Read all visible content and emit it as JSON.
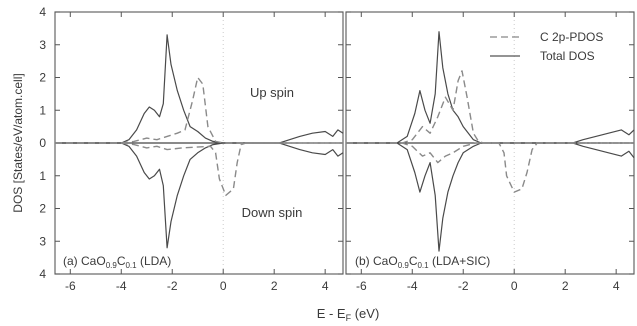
{
  "figure": {
    "xlabel": "E - E",
    "xlabel_sub": "F",
    "xlabel_unit": " (eV)",
    "ylabel": "DOS [States/eV/atom.cell]"
  },
  "chart_data": [
    {
      "type": "line",
      "panel_label": "(a) CaO",
      "panel_label_sub1": "0.9",
      "panel_label_mid": "C",
      "panel_label_sub2": "0.1",
      "panel_label_method": "(LDA)",
      "spin_up_label": "Up spin",
      "spin_down_label": "Down spin",
      "xlim": [
        -6.6,
        4.7
      ],
      "ylim": [
        -4,
        4
      ],
      "xticks": [
        -6,
        -4,
        -2,
        0,
        2,
        4
      ],
      "yticks": [
        4,
        3,
        2,
        1,
        0,
        1,
        2,
        3,
        4
      ],
      "series": [
        {
          "name": "Total DOS",
          "style": "solid",
          "up": [
            [
              -6.6,
              0
            ],
            [
              -4.0,
              0
            ],
            [
              -3.7,
              0.1
            ],
            [
              -3.4,
              0.4
            ],
            [
              -3.1,
              0.9
            ],
            [
              -2.9,
              1.1
            ],
            [
              -2.7,
              1.0
            ],
            [
              -2.5,
              0.8
            ],
            [
              -2.35,
              1.2
            ],
            [
              -2.2,
              3.3
            ],
            [
              -2.05,
              2.4
            ],
            [
              -1.8,
              1.6
            ],
            [
              -1.55,
              1.0
            ],
            [
              -1.3,
              0.5
            ],
            [
              -1.0,
              0.35
            ],
            [
              -0.7,
              0.15
            ],
            [
              -0.4,
              0.05
            ],
            [
              0,
              0
            ],
            [
              2.2,
              0
            ],
            [
              2.6,
              0.1
            ],
            [
              3.0,
              0.2
            ],
            [
              3.5,
              0.3
            ],
            [
              4.0,
              0.35
            ],
            [
              4.3,
              0.2
            ],
            [
              4.5,
              0.4
            ],
            [
              4.7,
              0.3
            ]
          ],
          "down": [
            [
              -6.6,
              0
            ],
            [
              -4.0,
              0
            ],
            [
              -3.7,
              -0.1
            ],
            [
              -3.4,
              -0.4
            ],
            [
              -3.1,
              -0.9
            ],
            [
              -2.9,
              -1.1
            ],
            [
              -2.7,
              -1.0
            ],
            [
              -2.5,
              -0.8
            ],
            [
              -2.35,
              -1.3
            ],
            [
              -2.2,
              -3.2
            ],
            [
              -2.05,
              -2.4
            ],
            [
              -1.8,
              -1.6
            ],
            [
              -1.55,
              -1.0
            ],
            [
              -1.3,
              -0.5
            ],
            [
              -1.0,
              -0.3
            ],
            [
              -0.7,
              -0.15
            ],
            [
              -0.4,
              -0.05
            ],
            [
              0,
              0
            ],
            [
              2.2,
              0
            ],
            [
              2.6,
              -0.1
            ],
            [
              3.0,
              -0.2
            ],
            [
              3.5,
              -0.3
            ],
            [
              4.0,
              -0.35
            ],
            [
              4.3,
              -0.2
            ],
            [
              4.5,
              -0.4
            ],
            [
              4.7,
              -0.3
            ]
          ]
        },
        {
          "name": "C 2p-PDOS",
          "style": "dashed",
          "up": [
            [
              -6.6,
              0
            ],
            [
              -4.0,
              0
            ],
            [
              -3.5,
              0.05
            ],
            [
              -3.0,
              0.15
            ],
            [
              -2.6,
              0.1
            ],
            [
              -2.2,
              0.2
            ],
            [
              -1.8,
              0.3
            ],
            [
              -1.5,
              0.4
            ],
            [
              -1.2,
              1.3
            ],
            [
              -1.0,
              2.0
            ],
            [
              -0.8,
              1.8
            ],
            [
              -0.6,
              0.5
            ],
            [
              -0.3,
              0.05
            ],
            [
              0,
              0
            ],
            [
              4.7,
              0
            ]
          ],
          "down": [
            [
              -6.6,
              0
            ],
            [
              -4.0,
              0
            ],
            [
              -3.5,
              -0.05
            ],
            [
              -3.0,
              -0.15
            ],
            [
              -2.6,
              -0.1
            ],
            [
              -2.2,
              -0.2
            ],
            [
              -1.6,
              -0.15
            ],
            [
              -0.5,
              -0.1
            ],
            [
              -0.3,
              -0.3
            ],
            [
              -0.15,
              -1.1
            ],
            [
              0.1,
              -1.6
            ],
            [
              0.4,
              -1.4
            ],
            [
              0.55,
              -0.6
            ],
            [
              0.7,
              -0.05
            ],
            [
              0.9,
              0
            ],
            [
              4.7,
              0
            ]
          ]
        }
      ]
    },
    {
      "type": "line",
      "panel_label": "(b) CaO",
      "panel_label_sub1": "0.9",
      "panel_label_mid": "C",
      "panel_label_sub2": "0.1",
      "panel_label_method": "(LDA+SIC)",
      "legend": [
        "C 2p-PDOS",
        "Total DOS"
      ],
      "legend_position": "top-right",
      "xlim": [
        -6.6,
        4.7
      ],
      "ylim": [
        -4,
        4
      ],
      "xticks": [
        -6,
        -4,
        -2,
        0,
        2,
        4
      ],
      "series": [
        {
          "name": "Total DOS",
          "style": "solid",
          "up": [
            [
              -6.6,
              0
            ],
            [
              -4.6,
              0
            ],
            [
              -4.2,
              0.2
            ],
            [
              -3.9,
              0.9
            ],
            [
              -3.7,
              1.6
            ],
            [
              -3.5,
              1.0
            ],
            [
              -3.3,
              0.6
            ],
            [
              -3.1,
              1.5
            ],
            [
              -2.95,
              3.4
            ],
            [
              -2.8,
              2.3
            ],
            [
              -2.6,
              1.5
            ],
            [
              -2.4,
              1.0
            ],
            [
              -2.2,
              0.8
            ],
            [
              -2.0,
              0.5
            ],
            [
              -1.6,
              0.1
            ],
            [
              -1.3,
              0
            ],
            [
              2.3,
              0
            ],
            [
              2.7,
              0.1
            ],
            [
              3.2,
              0.2
            ],
            [
              3.7,
              0.3
            ],
            [
              4.2,
              0.4
            ],
            [
              4.5,
              0.25
            ],
            [
              4.7,
              0.4
            ]
          ],
          "down": [
            [
              -6.6,
              0
            ],
            [
              -4.6,
              0
            ],
            [
              -4.2,
              -0.2
            ],
            [
              -3.9,
              -0.9
            ],
            [
              -3.7,
              -1.5
            ],
            [
              -3.5,
              -1.0
            ],
            [
              -3.3,
              -0.6
            ],
            [
              -3.1,
              -1.6
            ],
            [
              -2.95,
              -3.3
            ],
            [
              -2.8,
              -2.3
            ],
            [
              -2.6,
              -1.5
            ],
            [
              -2.4,
              -1.0
            ],
            [
              -2.2,
              -0.6
            ],
            [
              -2.0,
              -0.3
            ],
            [
              -1.6,
              -0.1
            ],
            [
              -1.3,
              0
            ],
            [
              2.3,
              0
            ],
            [
              2.7,
              -0.1
            ],
            [
              3.2,
              -0.2
            ],
            [
              3.7,
              -0.3
            ],
            [
              4.2,
              -0.4
            ],
            [
              4.5,
              -0.25
            ],
            [
              4.7,
              -0.45
            ]
          ]
        },
        {
          "name": "C 2p-PDOS",
          "style": "dashed",
          "up": [
            [
              -6.6,
              0
            ],
            [
              -4.4,
              0
            ],
            [
              -4.0,
              0.1
            ],
            [
              -3.6,
              0.5
            ],
            [
              -3.3,
              0.3
            ],
            [
              -3.0,
              0.8
            ],
            [
              -2.7,
              1.4
            ],
            [
              -2.4,
              1.0
            ],
            [
              -2.2,
              1.9
            ],
            [
              -2.05,
              2.2
            ],
            [
              -1.85,
              1.4
            ],
            [
              -1.6,
              0.3
            ],
            [
              -1.4,
              0.05
            ],
            [
              -1.2,
              0
            ],
            [
              4.7,
              0
            ]
          ],
          "down": [
            [
              -6.6,
              0
            ],
            [
              -4.4,
              0
            ],
            [
              -4.0,
              -0.1
            ],
            [
              -3.6,
              -0.4
            ],
            [
              -3.3,
              -0.3
            ],
            [
              -3.0,
              -0.6
            ],
            [
              -2.7,
              -0.4
            ],
            [
              -2.4,
              -0.3
            ],
            [
              -2.0,
              -0.1
            ],
            [
              -1.5,
              0
            ],
            [
              -0.6,
              0
            ],
            [
              -0.4,
              -0.3
            ],
            [
              -0.3,
              -1.0
            ],
            [
              0.0,
              -1.5
            ],
            [
              0.3,
              -1.4
            ],
            [
              0.5,
              -0.9
            ],
            [
              0.7,
              -0.2
            ],
            [
              0.9,
              0
            ],
            [
              4.7,
              0
            ]
          ]
        }
      ]
    }
  ]
}
